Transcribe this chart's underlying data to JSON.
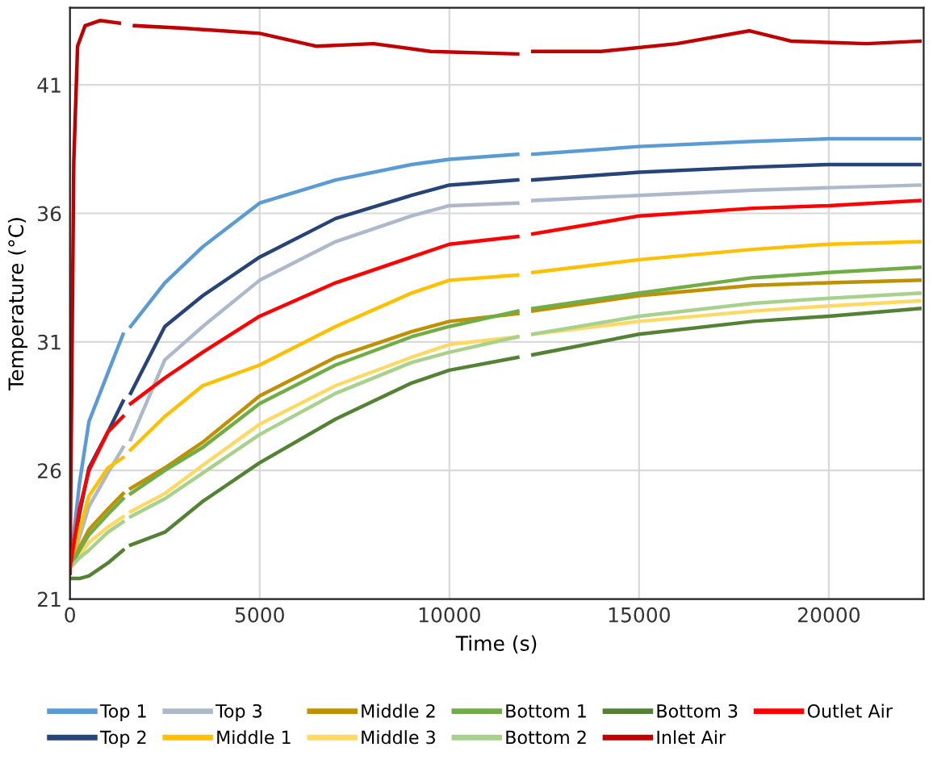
{
  "chart_data": {
    "type": "line",
    "xlabel": "Time (s)",
    "ylabel": "Temperature (°C)",
    "x": [
      0,
      250,
      500,
      1000,
      1400,
      1500,
      1600,
      2500,
      3500,
      5000,
      7000,
      9000,
      10000,
      11800,
      12000,
      12200,
      15000,
      18000,
      20000,
      22400
    ],
    "xlim": [
      0,
      22500
    ],
    "xticks": [
      0,
      5000,
      10000,
      15000,
      20000
    ],
    "ylim": [
      21,
      44
    ],
    "yticks": [
      21,
      26,
      31,
      36,
      41
    ],
    "grid": true,
    "legend": "bottom",
    "marker": "none",
    "line_style": "solid",
    "series": [
      {
        "name": "Top 1",
        "color": "#5b9bd5",
        "values": [
          22.2,
          25.5,
          27.9,
          29.8,
          31.3,
          null,
          31.6,
          33.3,
          34.7,
          36.4,
          37.3,
          37.9,
          38.1,
          38.3,
          null,
          38.3,
          38.6,
          38.8,
          38.9,
          38.9
        ]
      },
      {
        "name": "Top 2",
        "color": "#264478",
        "values": [
          22.2,
          24.3,
          26.1,
          27.5,
          28.7,
          null,
          29.0,
          31.6,
          32.8,
          34.3,
          35.8,
          36.7,
          37.1,
          37.3,
          null,
          37.3,
          37.6,
          37.8,
          37.9,
          37.9
        ]
      },
      {
        "name": "Top 3",
        "color": "#adb9ca",
        "values": [
          22.2,
          23.4,
          24.6,
          25.9,
          26.9,
          null,
          27.2,
          30.3,
          31.6,
          33.4,
          34.9,
          35.9,
          36.3,
          36.4,
          null,
          36.5,
          36.7,
          36.9,
          37.0,
          37.1
        ]
      },
      {
        "name": "Middle 1",
        "color": "#ffc000",
        "values": [
          22.2,
          23.7,
          25.0,
          26.1,
          26.5,
          null,
          26.8,
          28.1,
          29.3,
          30.1,
          31.6,
          32.9,
          33.4,
          33.6,
          null,
          33.7,
          34.2,
          34.6,
          34.8,
          34.9
        ]
      },
      {
        "name": "Middle 2",
        "color": "#bf9000",
        "values": [
          22.2,
          23.0,
          23.7,
          24.5,
          25.1,
          null,
          25.3,
          26.1,
          27.1,
          28.9,
          30.4,
          31.4,
          31.8,
          32.1,
          null,
          32.2,
          32.8,
          33.2,
          33.3,
          33.4
        ]
      },
      {
        "name": "Middle 3",
        "color": "#ffd966",
        "values": [
          22.2,
          22.7,
          23.2,
          23.8,
          24.2,
          null,
          24.4,
          25.1,
          26.2,
          27.8,
          29.3,
          30.4,
          30.9,
          31.2,
          null,
          31.3,
          31.8,
          32.2,
          32.4,
          32.6
        ]
      },
      {
        "name": "Bottom 1",
        "color": "#70ad47",
        "values": [
          22.2,
          22.9,
          23.5,
          24.3,
          24.9,
          null,
          25.1,
          26.0,
          26.9,
          28.6,
          30.1,
          31.2,
          31.6,
          32.2,
          null,
          32.3,
          32.9,
          33.5,
          33.7,
          33.9
        ]
      },
      {
        "name": "Bottom 2",
        "color": "#a9d18e",
        "values": [
          22.2,
          22.6,
          22.9,
          23.6,
          24.0,
          null,
          24.2,
          24.9,
          25.9,
          27.4,
          29.0,
          30.2,
          30.6,
          31.2,
          null,
          31.3,
          32.0,
          32.5,
          32.7,
          32.9
        ]
      },
      {
        "name": "Bottom 3",
        "color": "#548235",
        "values": [
          21.8,
          21.8,
          21.9,
          22.4,
          22.9,
          null,
          23.1,
          23.6,
          24.8,
          26.3,
          28.0,
          29.4,
          29.9,
          30.4,
          null,
          30.5,
          31.3,
          31.8,
          32.0,
          32.3
        ]
      },
      {
        "name": "Inlet Air",
        "color": "#c00000",
        "x": [
          0,
          100,
          200,
          400,
          800,
          1300,
          1500,
          1700,
          3000,
          5000,
          6500,
          8000,
          9500,
          11800,
          12000,
          12200,
          14000,
          16000,
          17900,
          19000,
          21000,
          22400
        ],
        "values": [
          22.0,
          38.0,
          42.5,
          43.3,
          43.5,
          43.4,
          null,
          43.3,
          43.2,
          43.0,
          42.5,
          42.6,
          42.3,
          42.2,
          null,
          42.3,
          42.3,
          42.6,
          43.1,
          42.7,
          42.6,
          42.7
        ]
      },
      {
        "name": "Outlet Air",
        "color": "#ff0000",
        "values": [
          22.2,
          24.5,
          26.0,
          27.5,
          28.1,
          null,
          28.6,
          29.6,
          30.6,
          32.0,
          33.3,
          34.3,
          34.8,
          35.1,
          null,
          35.2,
          35.9,
          36.2,
          36.3,
          36.5
        ]
      }
    ]
  }
}
